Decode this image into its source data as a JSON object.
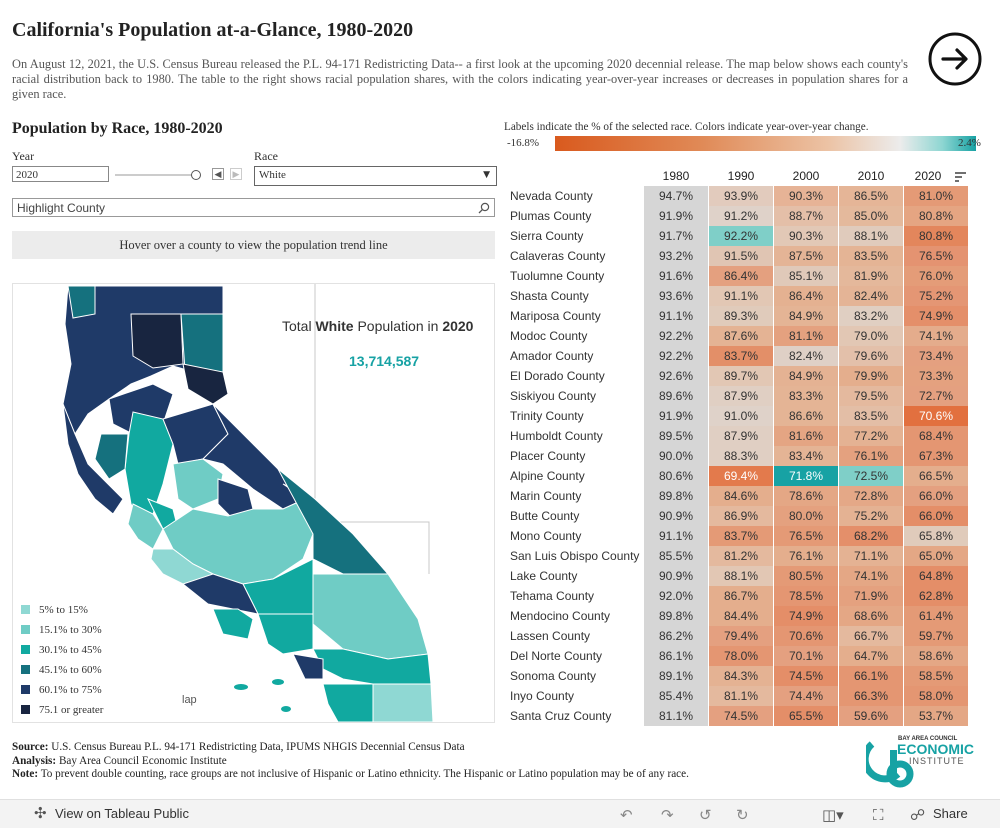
{
  "header": {
    "title": "California's Population at-a-Glance, 1980-2020",
    "intro": "On August 12, 2021, the U.S. Census Bureau released the P.L. 94-171 Redistricting Data-- a first look at the upcoming 2020 decennial release. The map below shows each county's racial distribution back to 1980. The table to the right shows racial population shares, with the colors indicating year-over-year increases or decreases in population shares for a given race."
  },
  "controls": {
    "section_title": "Population by Race, 1980-2020",
    "year_label": "Year",
    "year_value": "2020",
    "race_label": "Race",
    "race_value": "White",
    "highlight_placeholder": "Highlight County",
    "hover_text": "Hover over a county to view the population trend line",
    "prev_icon": "chevron-left-icon",
    "next_icon": "chevron-right-icon"
  },
  "map": {
    "caption_prefix": "Total ",
    "caption_race": "White",
    "caption_mid": " Population in ",
    "caption_year": "2020",
    "total": "13,714,587",
    "corner_text": "lap",
    "legend": [
      {
        "label": "5% to 15%",
        "color": "#8fd8d3"
      },
      {
        "label": "15.1% to 30%",
        "color": "#6fccc5"
      },
      {
        "label": "30.1% to 45%",
        "color": "#11a9a0"
      },
      {
        "label": "45.1% to 60%",
        "color": "#15717e"
      },
      {
        "label": "60.1% to 75%",
        "color": "#1f3a68"
      },
      {
        "label": "75.1 or greater",
        "color": "#182540"
      }
    ]
  },
  "colorbar": {
    "caption": "Labels indicate the % of the selected race. Colors indicate year-over-year change.",
    "min_label": "-16.8%",
    "max_label": "2.4%"
  },
  "table": {
    "years": [
      "1980",
      "1990",
      "2000",
      "2010",
      "2020"
    ],
    "sort_icon": "sort-icon",
    "rows": [
      {
        "county": "Nevada County",
        "values": [
          "94.7%",
          "93.9%",
          "90.3%",
          "86.5%",
          "81.0%"
        ],
        "colors": [
          "#d6d6d6",
          "#e2cbbd",
          "#e6b396",
          "#e5b597",
          "#e49a76"
        ]
      },
      {
        "county": "Plumas County",
        "values": [
          "91.9%",
          "91.2%",
          "88.7%",
          "85.0%",
          "80.8%"
        ],
        "colors": [
          "#d6d6d6",
          "#dfd2c9",
          "#e4bfa8",
          "#e4b99c",
          "#e5a582"
        ]
      },
      {
        "county": "Sierra County",
        "values": [
          "91.7%",
          "92.2%",
          "90.3%",
          "88.1%",
          "80.8%"
        ],
        "colors": [
          "#d6d6d6",
          "#7fcfc8",
          "#e2c8b6",
          "#e0cbbc",
          "#e3865c"
        ]
      },
      {
        "county": "Calaveras County",
        "values": [
          "93.2%",
          "91.5%",
          "87.5%",
          "83.5%",
          "76.5%"
        ],
        "colors": [
          "#d6d6d6",
          "#e0c5b3",
          "#e4b496",
          "#e4b495",
          "#e49371"
        ]
      },
      {
        "county": "Tuolumne County",
        "values": [
          "91.6%",
          "86.4%",
          "85.1%",
          "81.9%",
          "76.0%"
        ],
        "colors": [
          "#d6d6d6",
          "#e4a07f",
          "#e0c9b9",
          "#e4b89b",
          "#e49c78"
        ]
      },
      {
        "county": "Shasta County",
        "values": [
          "93.6%",
          "91.1%",
          "86.4%",
          "82.4%",
          "75.2%"
        ],
        "colors": [
          "#d6d6d6",
          "#e2c7b4",
          "#e4b191",
          "#e4b496",
          "#e49674"
        ]
      },
      {
        "county": "Mariposa County",
        "values": [
          "91.1%",
          "89.3%",
          "84.9%",
          "83.2%",
          "74.9%"
        ],
        "colors": [
          "#d6d6d6",
          "#e0cbbb",
          "#e4b495",
          "#e0cfc2",
          "#e48f6a"
        ]
      },
      {
        "county": "Modoc County",
        "values": [
          "92.2%",
          "87.6%",
          "81.1%",
          "79.0%",
          "74.1%"
        ],
        "colors": [
          "#d6d6d6",
          "#e4b394",
          "#e4a17f",
          "#e2c7b4",
          "#e4ac8c"
        ]
      },
      {
        "county": "Amador County",
        "values": [
          "92.2%",
          "83.7%",
          "82.4%",
          "79.6%",
          "73.4%"
        ],
        "colors": [
          "#d6d6d6",
          "#e38f68",
          "#dfd0c6",
          "#e3c0aa",
          "#e4a080"
        ]
      },
      {
        "county": "El Dorado County",
        "values": [
          "92.6%",
          "89.7%",
          "84.9%",
          "79.9%",
          "73.3%"
        ],
        "colors": [
          "#d6d6d6",
          "#e2c7b4",
          "#e4b293",
          "#e4ae8d",
          "#e4a17f"
        ]
      },
      {
        "county": "Siskiyou County",
        "values": [
          "89.6%",
          "87.9%",
          "83.3%",
          "79.5%",
          "72.7%"
        ],
        "colors": [
          "#d6d6d6",
          "#e0cfc3",
          "#e4b495",
          "#e4b99e",
          "#e4a080"
        ]
      },
      {
        "county": "Trinity County",
        "values": [
          "91.9%",
          "91.0%",
          "86.6%",
          "83.5%",
          "70.6%"
        ],
        "colors": [
          "#d6d6d6",
          "#dfd2c9",
          "#e4b495",
          "#e3bea6",
          "#e2703f"
        ]
      },
      {
        "county": "Humboldt County",
        "values": [
          "89.5%",
          "87.9%",
          "81.6%",
          "77.2%",
          "68.4%"
        ],
        "colors": [
          "#d6d6d6",
          "#e0cfc3",
          "#e4a583",
          "#e4b293",
          "#e49672"
        ]
      },
      {
        "county": "Placer County",
        "values": [
          "90.0%",
          "88.3%",
          "83.4%",
          "76.1%",
          "67.3%"
        ],
        "colors": [
          "#d6d6d6",
          "#e0cfc3",
          "#e4b495",
          "#e4a17f",
          "#e49672"
        ]
      },
      {
        "county": "Alpine County",
        "values": [
          "80.6%",
          "69.4%",
          "71.8%",
          "72.5%",
          "66.5%"
        ],
        "colors": [
          "#d6d6d6",
          "#e37a4c",
          "#17a2a4",
          "#7fcfc8",
          "#e4ae8d"
        ]
      },
      {
        "county": "Marin County",
        "values": [
          "89.8%",
          "84.6%",
          "78.6%",
          "72.8%",
          "66.0%"
        ],
        "colors": [
          "#d6d6d6",
          "#e4ae8d",
          "#e4a785",
          "#e4a887",
          "#e4a080"
        ]
      },
      {
        "county": "Butte County",
        "values": [
          "90.9%",
          "86.9%",
          "80.0%",
          "75.2%",
          "66.0%"
        ],
        "colors": [
          "#d6d6d6",
          "#e4b99e",
          "#e4a17f",
          "#e4b293",
          "#e48e68"
        ]
      },
      {
        "county": "Mono County",
        "values": [
          "91.1%",
          "83.7%",
          "76.5%",
          "68.2%",
          "65.8%"
        ],
        "colors": [
          "#d6d6d6",
          "#e49a76",
          "#e49a76",
          "#e48f6a",
          "#e0cbbb"
        ]
      },
      {
        "county": "San Luis Obispo County",
        "values": [
          "85.5%",
          "81.2%",
          "76.1%",
          "71.1%",
          "65.0%"
        ],
        "colors": [
          "#d6d6d6",
          "#e4b99e",
          "#e4ae8d",
          "#e4b293",
          "#e4a785"
        ]
      },
      {
        "county": "Lake County",
        "values": [
          "90.9%",
          "88.1%",
          "80.5%",
          "74.1%",
          "64.8%"
        ],
        "colors": [
          "#d6d6d6",
          "#e2c7b4",
          "#e49a76",
          "#e4a785",
          "#e48e68"
        ]
      },
      {
        "county": "Tehama County",
        "values": [
          "92.0%",
          "86.7%",
          "78.5%",
          "71.9%",
          "62.8%"
        ],
        "colors": [
          "#d6d6d6",
          "#e4ae8d",
          "#e49672",
          "#e4a17f",
          "#e48e68"
        ]
      },
      {
        "county": "Mendocino County",
        "values": [
          "89.8%",
          "84.4%",
          "74.9%",
          "68.6%",
          "61.4%"
        ],
        "colors": [
          "#d6d6d6",
          "#e4ae8d",
          "#e48e68",
          "#e4a785",
          "#e49a76"
        ]
      },
      {
        "county": "Lassen County",
        "values": [
          "86.2%",
          "79.4%",
          "70.6%",
          "66.7%",
          "59.7%"
        ],
        "colors": [
          "#d6d6d6",
          "#e4a080",
          "#e49672",
          "#e4b99e",
          "#e49a76"
        ]
      },
      {
        "county": "Del Norte County",
        "values": [
          "86.1%",
          "78.0%",
          "70.1%",
          "64.7%",
          "58.6%"
        ],
        "colors": [
          "#d6d6d6",
          "#e49672",
          "#e4a080",
          "#e4ae8d",
          "#e4a785"
        ]
      },
      {
        "county": "Sonoma County",
        "values": [
          "89.1%",
          "84.3%",
          "74.5%",
          "66.1%",
          "58.5%"
        ],
        "colors": [
          "#d6d6d6",
          "#e4b293",
          "#e48e68",
          "#e49672",
          "#e49a76"
        ]
      },
      {
        "county": "Inyo County",
        "values": [
          "85.4%",
          "81.1%",
          "74.4%",
          "66.3%",
          "58.0%"
        ],
        "colors": [
          "#d6d6d6",
          "#e4b99e",
          "#e4a080",
          "#e49672",
          "#e49672"
        ]
      },
      {
        "county": "Santa Cruz County",
        "values": [
          "81.1%",
          "74.5%",
          "65.5%",
          "59.6%",
          "53.7%"
        ],
        "colors": [
          "#d6d6d6",
          "#e4a080",
          "#e48e68",
          "#e4a080",
          "#e4a785"
        ]
      }
    ]
  },
  "footer": {
    "source_label": "Source:",
    "source_text": " U.S. Census Bureau P.L. 94-171 Redistricting Data, IPUMS NHGIS Decennial Census Data",
    "analysis_label": "Analysis:",
    "analysis_text": " Bay Area Council Economic Institute",
    "note_label": "Note:",
    "note_text": " To prevent double counting, race groups are not inclusive of Hispanic or Latino ethnicity. The Hispanic or Latino population may be of any race.",
    "logo_small": "BAY AREA COUNCIL",
    "logo_big": "ECONOMIC",
    "logo_sub": "INSTITUTE"
  },
  "toolbar": {
    "view_label": "View on Tableau Public",
    "share_label": "Share"
  },
  "colors": {
    "accent_teal": "#17a2a4",
    "accent_orange": "#d95a1e",
    "navy": "#1f3a68",
    "dark_navy": "#182540"
  }
}
